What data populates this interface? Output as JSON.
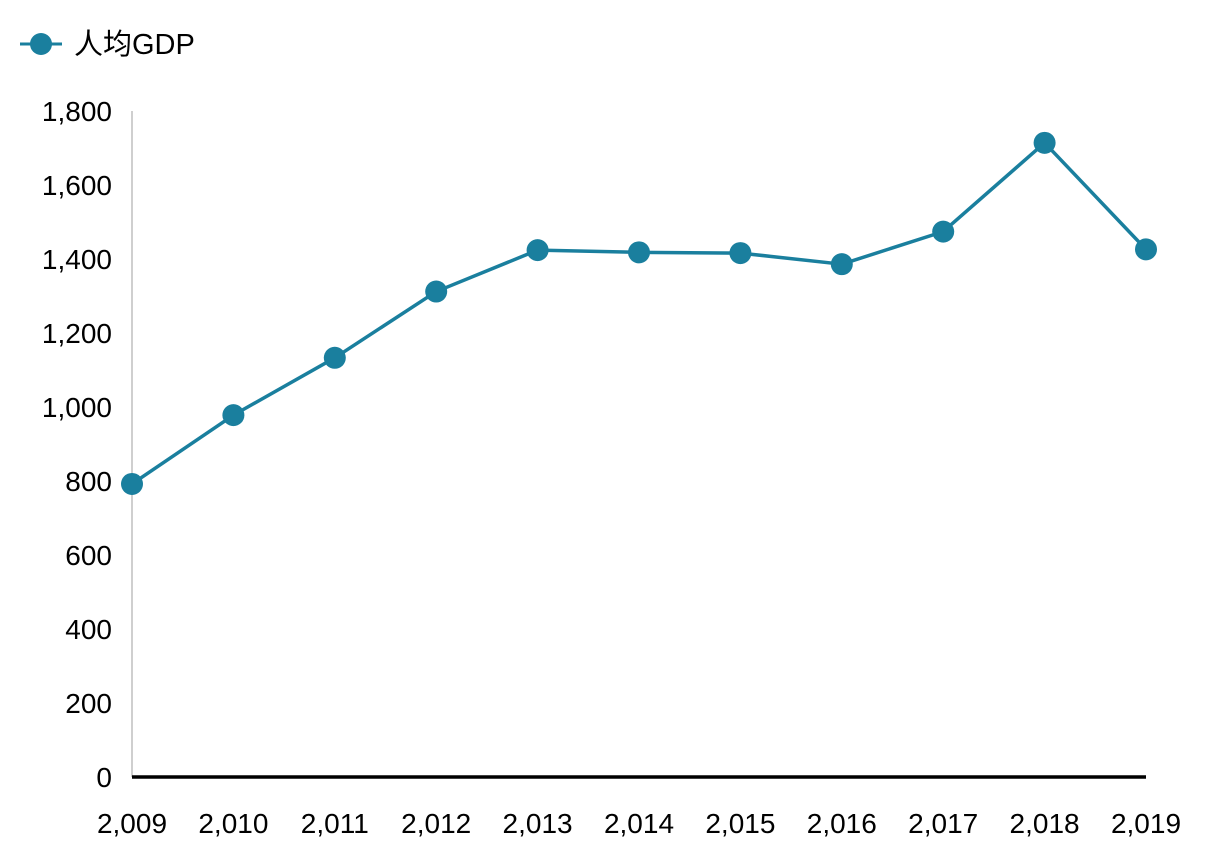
{
  "chart_data": {
    "type": "line",
    "title": "",
    "xlabel": "",
    "ylabel": "",
    "x": [
      "2,009",
      "2,010",
      "2,011",
      "2,012",
      "2,013",
      "2,014",
      "2,015",
      "2,016",
      "2,017",
      "2,018",
      "2,019"
    ],
    "series": [
      {
        "name": "人均GDP",
        "color": "#1a7f9e",
        "values": [
          792,
          978,
          1133,
          1312,
          1424,
          1418,
          1416,
          1386,
          1474,
          1714,
          1426
        ]
      }
    ],
    "ylim": [
      0,
      1800
    ],
    "yticks": [
      "0",
      "200",
      "400",
      "600",
      "800",
      "1,000",
      "1,200",
      "1,400",
      "1,600",
      "1,800"
    ],
    "grid": false,
    "legend_position": "top-left",
    "marker": "circle"
  }
}
